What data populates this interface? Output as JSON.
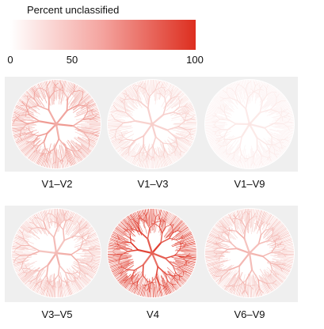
{
  "legend": {
    "title": "Percent unclassified",
    "ticks": [
      "0",
      "50",
      "100"
    ],
    "color_min": "#ffffff",
    "color_max": "#dd2e1f"
  },
  "panels": [
    {
      "label": "V1–V2",
      "intensity": 0.3
    },
    {
      "label": "V1–V3",
      "intensity": 0.13
    },
    {
      "label": "V1–V9",
      "intensity": 0.02
    },
    {
      "label": "V3–V5",
      "intensity": 0.22
    },
    {
      "label": "V4",
      "intensity": 0.65
    },
    {
      "label": "V6–V9",
      "intensity": 0.22
    }
  ]
}
